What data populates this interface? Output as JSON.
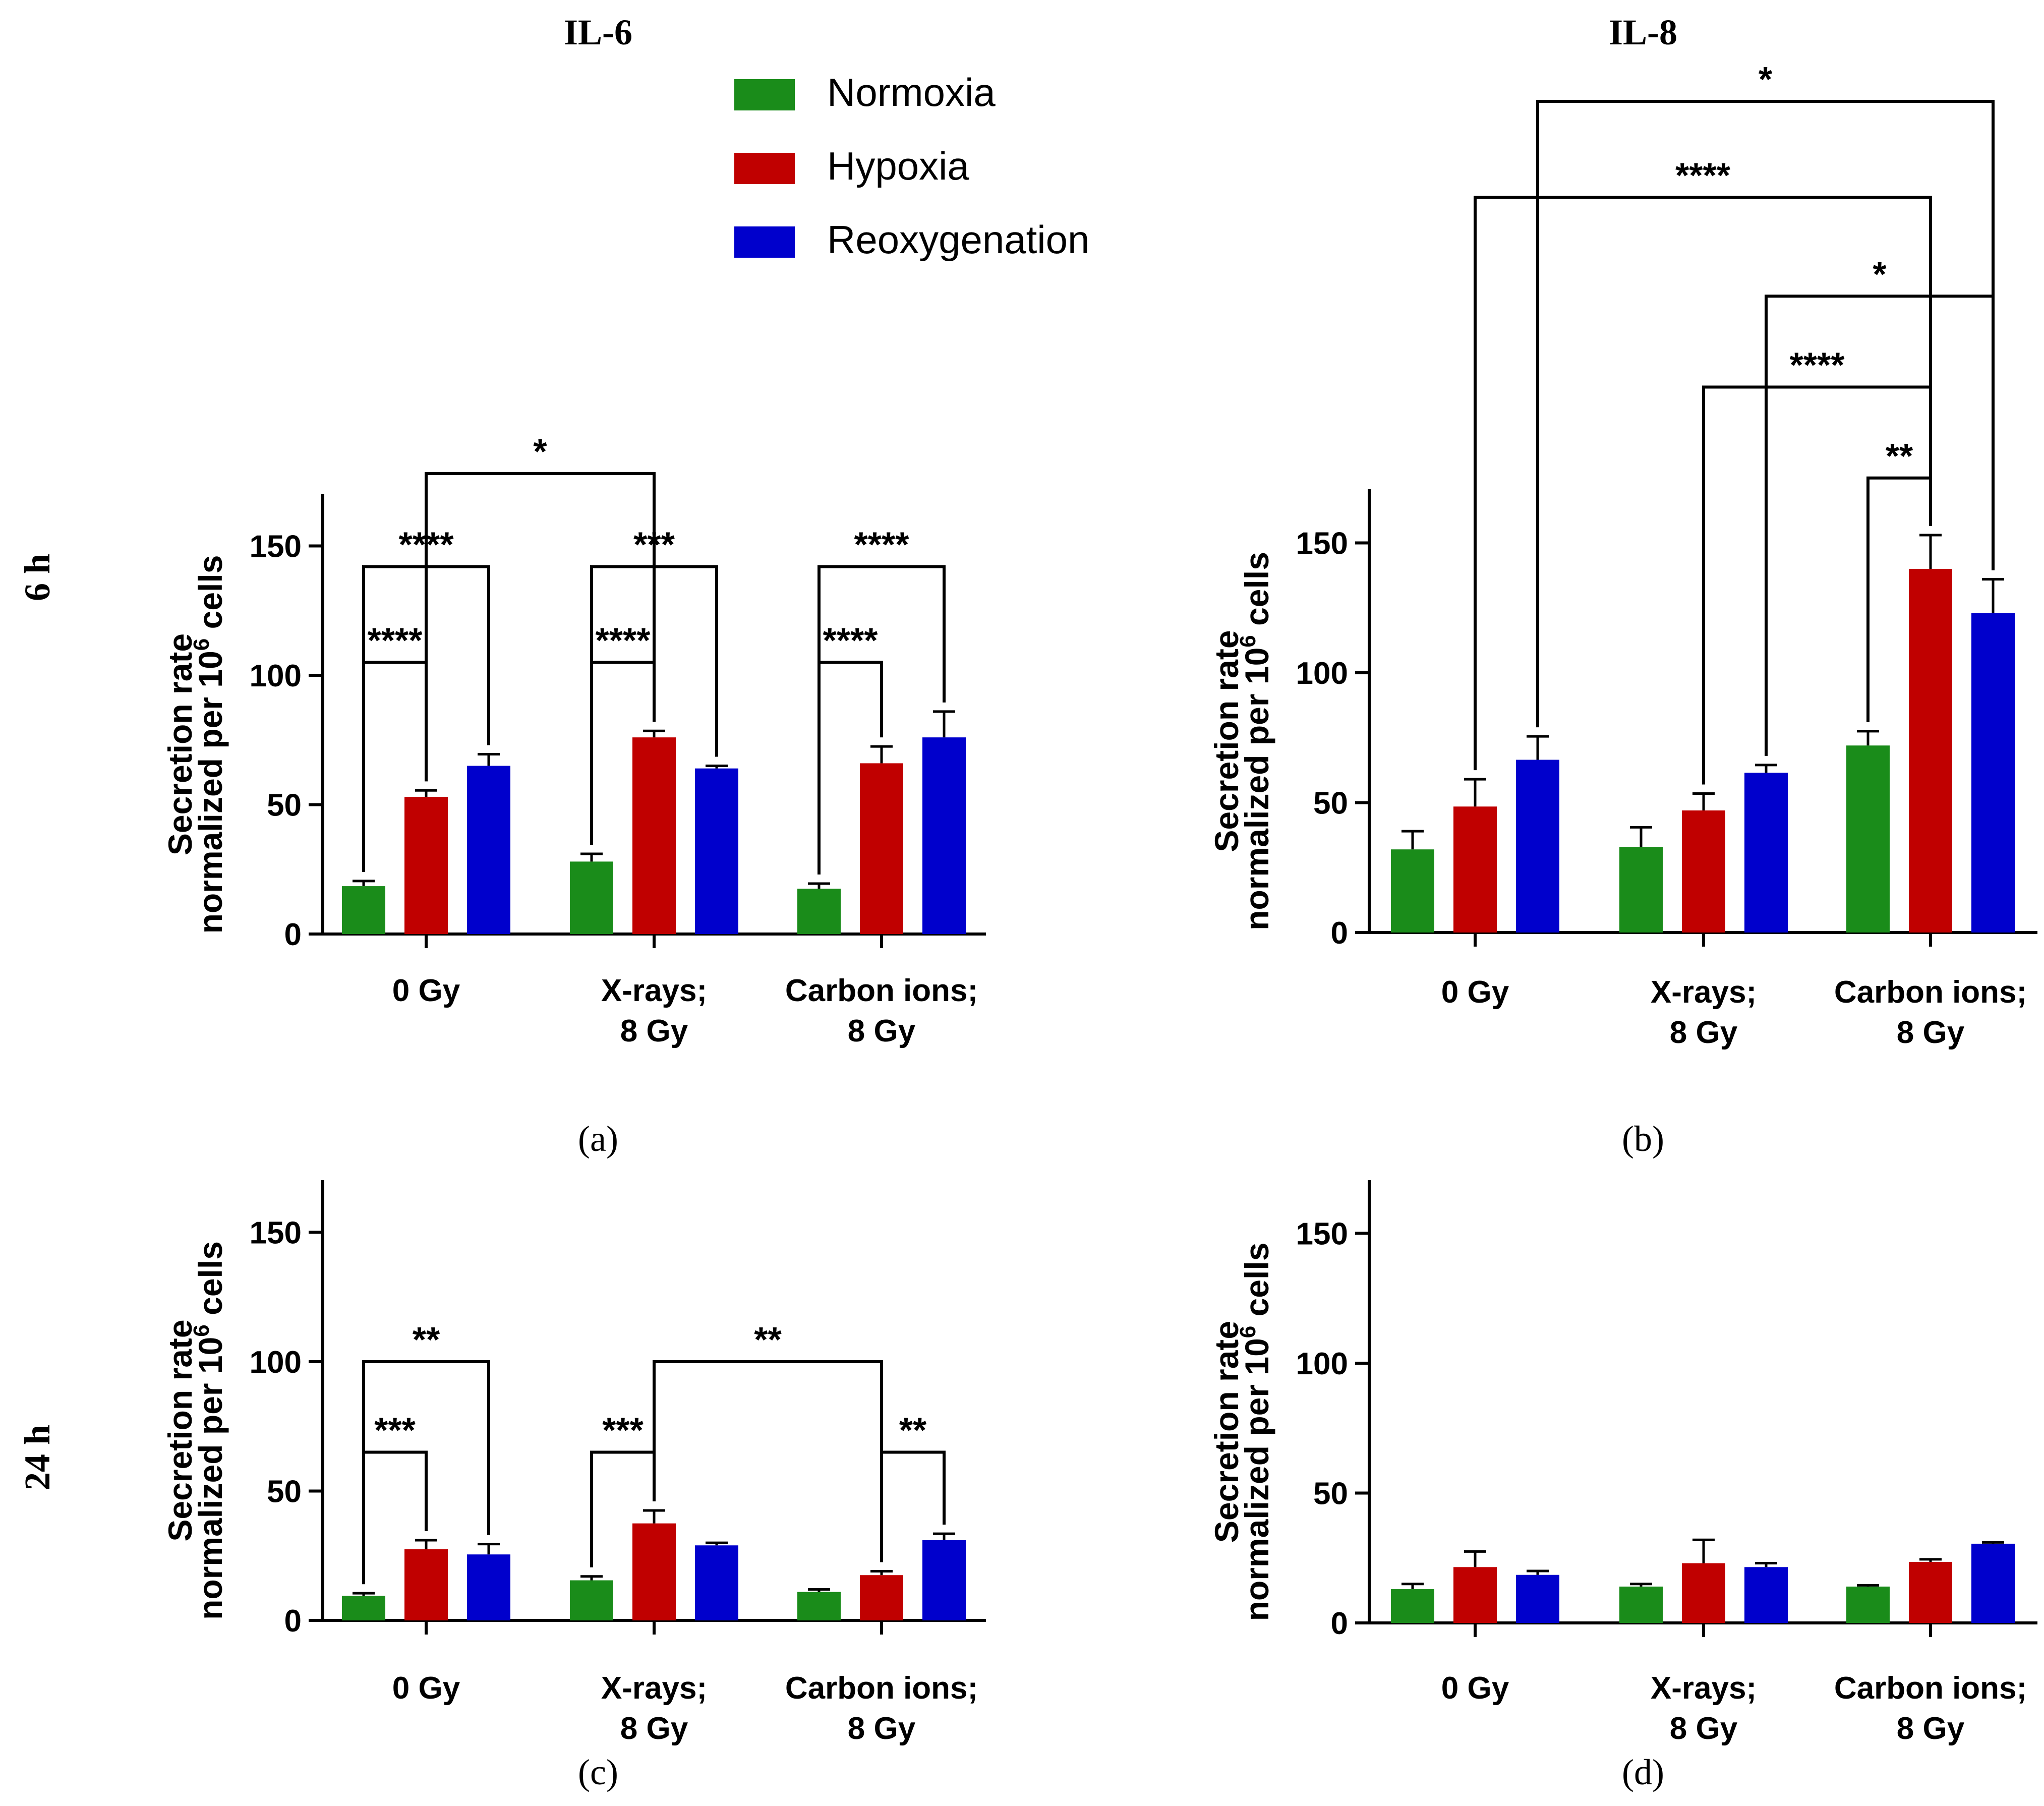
{
  "figure": {
    "col_titles": [
      "IL-6",
      "IL-8"
    ],
    "row_labels": [
      "6 h",
      "24 h"
    ],
    "legend": [
      {
        "label": "Normoxia",
        "color": "#1a8c1a"
      },
      {
        "label": "Hypoxia",
        "color": "#c00000"
      },
      {
        "label": "Reoxygenation",
        "color": "#0000cc"
      }
    ]
  },
  "chart_data": [
    {
      "panel_label": "(a)",
      "type": "bar",
      "ylabel_line1": "Secretion rate",
      "ylabel_line2_prefix": "normalized per 10",
      "ylabel_sup": "6",
      "ylabel_line2_suffix": " cells",
      "ylim": [
        0,
        170
      ],
      "yticks": [
        0,
        50,
        100,
        150
      ],
      "categories": [
        [
          "0 Gy"
        ],
        [
          "X-rays;",
          "8 Gy"
        ],
        [
          "Carbon ions;",
          "8 Gy"
        ]
      ],
      "series": [
        {
          "name": "Normoxia",
          "values": [
            18.5,
            28,
            17.5
          ],
          "errors": [
            2,
            3,
            2
          ]
        },
        {
          "name": "Hypoxia",
          "values": [
            53,
            76,
            66
          ],
          "errors": [
            2.5,
            2.5,
            6.5
          ]
        },
        {
          "name": "Reoxygenation",
          "values": [
            65,
            64,
            76
          ],
          "errors": [
            4.5,
            1,
            10
          ]
        }
      ],
      "significance": [
        {
          "from": [
            0,
            0
          ],
          "to": [
            0,
            1
          ],
          "label": "****",
          "y": 105
        },
        {
          "from": [
            0,
            0
          ],
          "to": [
            0,
            2
          ],
          "label": "****",
          "y": 142
        },
        {
          "from": [
            1,
            0
          ],
          "to": [
            1,
            1
          ],
          "label": "****",
          "y": 105
        },
        {
          "from": [
            1,
            0
          ],
          "to": [
            1,
            2
          ],
          "label": "***",
          "y": 142
        },
        {
          "from": [
            2,
            0
          ],
          "to": [
            2,
            1
          ],
          "label": "****",
          "y": 105
        },
        {
          "from": [
            2,
            0
          ],
          "to": [
            2,
            2
          ],
          "label": "****",
          "y": 142
        },
        {
          "from": [
            0,
            1
          ],
          "to": [
            1,
            1
          ],
          "label": "*",
          "y": 178
        }
      ]
    },
    {
      "panel_label": "(b)",
      "type": "bar",
      "ylabel_line1": "Secretion rate",
      "ylabel_line2_prefix": "normalized per 10",
      "ylabel_sup": "6",
      "ylabel_line2_suffix": " cells",
      "ylim": [
        0,
        170
      ],
      "yticks": [
        0,
        50,
        100,
        150
      ],
      "categories": [
        [
          "0 Gy"
        ],
        [
          "X-rays;",
          "8 Gy"
        ],
        [
          "Carbon ions;",
          "8 Gy"
        ]
      ],
      "series": [
        {
          "name": "Normoxia",
          "values": [
            32,
            33,
            72
          ],
          "errors": [
            7,
            7.5,
            5.5
          ]
        },
        {
          "name": "Hypoxia",
          "values": [
            48.5,
            47,
            140
          ],
          "errors": [
            10.5,
            6.5,
            13
          ]
        },
        {
          "name": "Reoxygenation",
          "values": [
            66.5,
            61.5,
            123
          ],
          "errors": [
            9,
            3,
            13
          ]
        }
      ],
      "significance": [
        {
          "from": [
            2,
            0
          ],
          "to": [
            2,
            1
          ],
          "label": "**",
          "y": 175
        },
        {
          "from": [
            1,
            1
          ],
          "to": [
            2,
            1
          ],
          "label": "****",
          "y": 210
        },
        {
          "from": [
            1,
            2
          ],
          "to": [
            2,
            2
          ],
          "label": "*",
          "y": 245
        },
        {
          "from": [
            0,
            1
          ],
          "to": [
            2,
            1
          ],
          "label": "****",
          "y": 283
        },
        {
          "from": [
            0,
            2
          ],
          "to": [
            2,
            2
          ],
          "label": "*",
          "y": 320
        }
      ]
    },
    {
      "panel_label": "(c)",
      "type": "bar",
      "ylabel_line1": "Secretion rate",
      "ylabel_line2_prefix": "normalized per 10",
      "ylabel_sup": "6",
      "ylabel_line2_suffix": " cells",
      "ylim": [
        0,
        170
      ],
      "yticks": [
        0,
        50,
        100,
        150
      ],
      "categories": [
        [
          "0 Gy"
        ],
        [
          "X-rays;",
          "8 Gy"
        ],
        [
          "Carbon ions;",
          "8 Gy"
        ]
      ],
      "series": [
        {
          "name": "Normoxia",
          "values": [
            9.5,
            15.5,
            11
          ],
          "errors": [
            1,
            1.5,
            1
          ]
        },
        {
          "name": "Hypoxia",
          "values": [
            27.5,
            37.5,
            17.5
          ],
          "errors": [
            3.5,
            5,
            1.5
          ]
        },
        {
          "name": "Reoxygenation",
          "values": [
            25.5,
            29,
            31
          ],
          "errors": [
            4,
            1,
            2.5
          ]
        }
      ],
      "significance": [
        {
          "from": [
            0,
            0
          ],
          "to": [
            0,
            1
          ],
          "label": "***",
          "y": 65
        },
        {
          "from": [
            0,
            0
          ],
          "to": [
            0,
            2
          ],
          "label": "**",
          "y": 100
        },
        {
          "from": [
            1,
            0
          ],
          "to": [
            1,
            1
          ],
          "label": "***",
          "y": 65
        },
        {
          "from": [
            2,
            1
          ],
          "to": [
            2,
            2
          ],
          "label": "**",
          "y": 65
        },
        {
          "from": [
            1,
            1
          ],
          "to": [
            2,
            1
          ],
          "label": "**",
          "y": 100
        }
      ]
    },
    {
      "panel_label": "(d)",
      "type": "bar",
      "ylabel_line1": "Secretion rate",
      "ylabel_line2_prefix": "normalized per 10",
      "ylabel_sup": "6",
      "ylabel_line2_suffix": " cells",
      "ylim": [
        0,
        170
      ],
      "yticks": [
        0,
        50,
        100,
        150
      ],
      "categories": [
        [
          "0 Gy"
        ],
        [
          "X-rays;",
          "8 Gy"
        ],
        [
          "Carbon ions;",
          "8 Gy"
        ]
      ],
      "series": [
        {
          "name": "Normoxia",
          "values": [
            13,
            14,
            14
          ],
          "errors": [
            2,
            1,
            0.5
          ]
        },
        {
          "name": "Hypoxia",
          "values": [
            21.5,
            23,
            23.5
          ],
          "errors": [
            6,
            9,
            1
          ]
        },
        {
          "name": "Reoxygenation",
          "values": [
            18.5,
            21.5,
            30.5
          ],
          "errors": [
            1.5,
            1.5,
            0.5
          ]
        }
      ],
      "significance": []
    }
  ]
}
